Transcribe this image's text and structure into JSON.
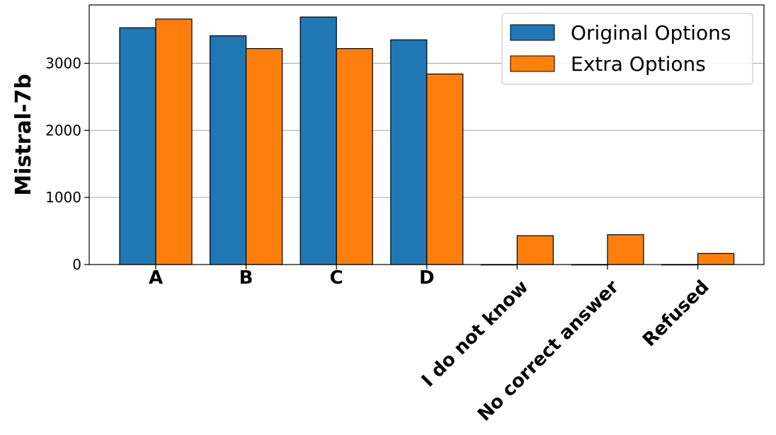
{
  "chart_data": {
    "type": "bar",
    "categories": [
      "A",
      "B",
      "C",
      "D",
      "I do not know",
      "No correct answer",
      "Refused"
    ],
    "series": [
      {
        "name": "Original Options",
        "color": "#1f77b4",
        "values": [
          3530,
          3410,
          3690,
          3350,
          0,
          0,
          0
        ]
      },
      {
        "name": "Extra Options",
        "color": "#ff7f0e",
        "values": [
          3660,
          3220,
          3220,
          2840,
          430,
          445,
          165
        ]
      }
    ],
    "title": "",
    "xlabel": "",
    "ylabel": "Mistral-7b",
    "ylim": [
      0,
      3870
    ],
    "yticks": [
      0,
      1000,
      2000,
      3000
    ],
    "grid": "y",
    "legend": "top-right"
  }
}
